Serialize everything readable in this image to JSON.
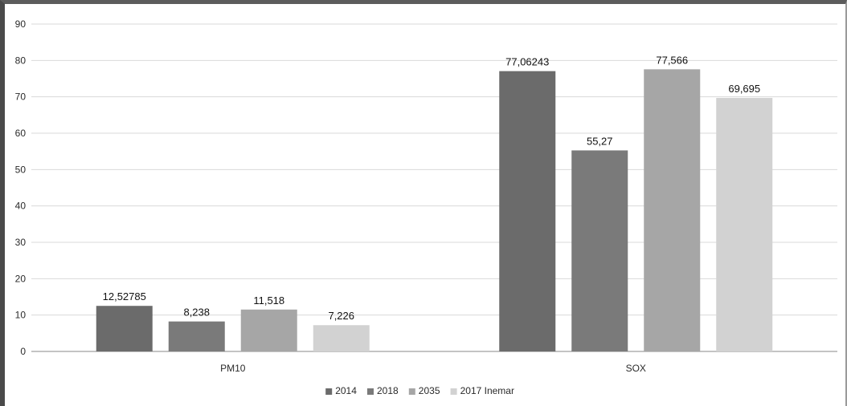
{
  "chart_data": {
    "type": "bar",
    "title": "",
    "xlabel": "",
    "ylabel": "",
    "categories": [
      "PM10",
      "SOX"
    ],
    "series": [
      {
        "name": "2014",
        "values": [
          12.52785,
          77.06243
        ],
        "labels": [
          "12,52785",
          "77,06243"
        ],
        "color": "#6b6b6b"
      },
      {
        "name": "2018",
        "values": [
          8.238,
          55.27
        ],
        "labels": [
          "8,238",
          "55,27"
        ],
        "color": "#7a7a7a"
      },
      {
        "name": "2035",
        "values": [
          11.518,
          77.566
        ],
        "labels": [
          "11,518",
          "77,566"
        ],
        "color": "#a6a6a6"
      },
      {
        "name": "2017 Inemar",
        "values": [
          7.226,
          69.695
        ],
        "labels": [
          "7,226",
          "69,695"
        ],
        "color": "#d2d2d2"
      }
    ],
    "ylim": [
      0,
      90
    ],
    "yticks": [
      0,
      10,
      20,
      30,
      40,
      50,
      60,
      70,
      80,
      90
    ],
    "grid": true,
    "legend_position": "bottom"
  }
}
